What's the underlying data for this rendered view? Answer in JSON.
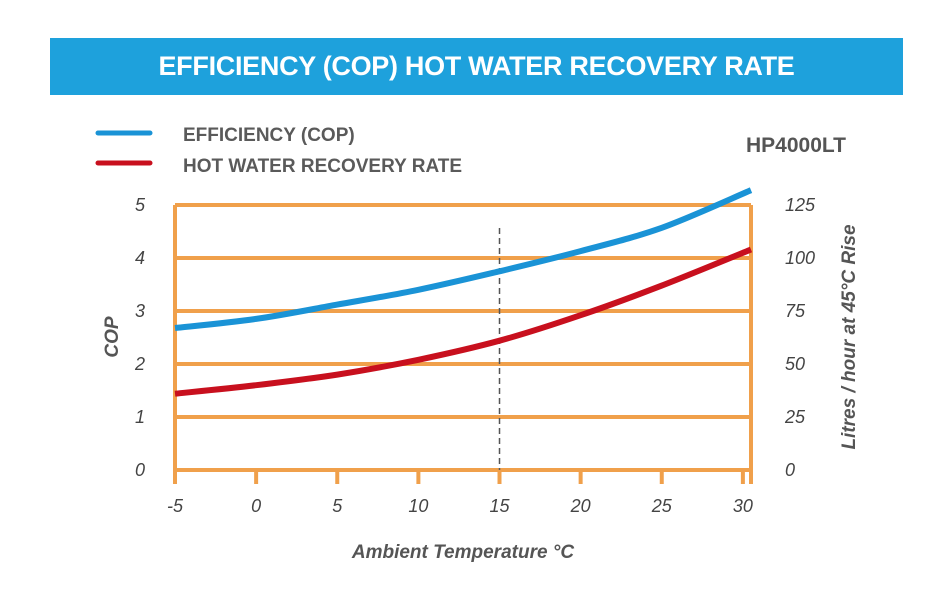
{
  "title": "EFFICIENCY (COP) HOT WATER RECOVERY RATE",
  "colors": {
    "banner": "#1ea1dc",
    "grid": "#f0a04b",
    "cop_line": "#1a93d6",
    "recovery_line": "#c8101e",
    "marker_line": "#555555"
  },
  "model": "HP4000LT",
  "chart_data": {
    "type": "line",
    "title": "EFFICIENCY (COP) HOT WATER RECOVERY RATE",
    "xlabel": "Ambient Temperature °C",
    "ylabel": "COP",
    "y2label": "Litres / hour at 45°C Rise",
    "xlim": [
      -5,
      30.5
    ],
    "ylim": [
      0,
      5
    ],
    "y2lim": [
      0,
      125
    ],
    "x_ticks": [
      "-5",
      "0",
      "5",
      "10",
      "15",
      "20",
      "25",
      "30"
    ],
    "y_ticks": [
      "0",
      "1",
      "2",
      "3",
      "4",
      "5"
    ],
    "y2_ticks": [
      "0",
      "25",
      "50",
      "75",
      "100",
      "125"
    ],
    "grid": true,
    "legend_position": "top-left",
    "reference_line_x": 15,
    "series": [
      {
        "name": "EFFICIENCY (COP)",
        "axis": "left",
        "x": [
          -5,
          0,
          5,
          10,
          15,
          20,
          25,
          30.5
        ],
        "values": [
          2.68,
          2.85,
          3.12,
          3.4,
          3.75,
          4.13,
          4.57,
          5.28
        ]
      },
      {
        "name": "HOT WATER RECOVERY RATE",
        "axis": "right",
        "x": [
          -5,
          0,
          5,
          10,
          15,
          20,
          25,
          30.5
        ],
        "values": [
          36,
          40,
          45,
          52,
          61,
          73,
          87,
          104
        ]
      }
    ]
  }
}
